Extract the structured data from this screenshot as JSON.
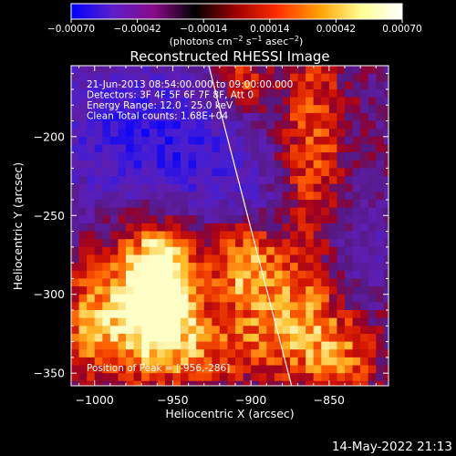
{
  "chart_data": {
    "type": "heatmap",
    "title": "Reconstructed RHESSI Image",
    "xlabel": "Heliocentric X (arcsec)",
    "ylabel": "Heliocentric Y (arcsec)",
    "xlim": [
      -1015,
      -812
    ],
    "ylim": [
      -358,
      -155
    ],
    "x_ticks": [
      -1000,
      -950,
      -900,
      -850
    ],
    "y_ticks": [
      -200,
      -250,
      -300,
      -350
    ],
    "x_tick_labels": [
      "−1000",
      "−950",
      "−900",
      "−850"
    ],
    "y_tick_labels": [
      "−200",
      "−250",
      "−300",
      "−350"
    ],
    "grid": false,
    "colorbar": {
      "range": [
        -0.0007,
        0.0007
      ],
      "ticks": [
        -0.0007,
        -0.00042,
        -0.00014,
        0.00014,
        0.00042,
        0.0007
      ],
      "tick_labels": [
        "−0.00070",
        "−0.00042",
        "−0.00014",
        "0.00014",
        "0.00042",
        "0.00070"
      ],
      "unit_text": "(photons cm",
      "unit_exp1": "−2",
      "unit_mid": " s",
      "unit_exp2": "−1",
      "unit_end": " asec",
      "unit_exp3": "−2",
      "unit_close": ")",
      "colors": [
        "#0000ff",
        "#5a1fc8",
        "#8a0a8a",
        "#000000",
        "#a00000",
        "#ff3000",
        "#ffa000",
        "#ffff90",
        "#ffffff"
      ]
    },
    "info_lines": [
      "21-Jun-2013 08:54:00.000 to 09:00:00.000",
      "Detectors: 3F 4F 5F 6F 7F 8F, Att 0",
      "Energy Range: 12.0 - 25.0 keV",
      "Clean     Total counts: 1.68E+04"
    ],
    "peak_label": "Position of Peak = [-956,-286]",
    "peak": [
      -956,
      -286
    ],
    "limb_line": {
      "x1": -927,
      "y1": -155,
      "x2": -874,
      "y2": -358
    },
    "hot_spots": [
      {
        "x": -955,
        "y": -290,
        "sx": 16,
        "sy": 28,
        "a": 1.0
      },
      {
        "x": -975,
        "y": -300,
        "sx": 22,
        "sy": 32,
        "a": 0.7
      },
      {
        "x": -905,
        "y": -280,
        "sx": 14,
        "sy": 22,
        "a": 0.75
      },
      {
        "x": -870,
        "y": -310,
        "sx": 22,
        "sy": 30,
        "a": 0.65
      },
      {
        "x": -860,
        "y": -200,
        "sx": 15,
        "sy": 45,
        "a": 0.6
      },
      {
        "x": -905,
        "y": -165,
        "sx": 12,
        "sy": 14,
        "a": 0.55
      },
      {
        "x": -935,
        "y": -335,
        "sx": 40,
        "sy": 18,
        "a": 0.55
      },
      {
        "x": -840,
        "y": -340,
        "sx": 18,
        "sy": 18,
        "a": 0.5
      },
      {
        "x": -1005,
        "y": -320,
        "sx": 14,
        "sy": 25,
        "a": 0.45
      }
    ],
    "cold_spots": [
      {
        "x": -985,
        "y": -195,
        "sx": 38,
        "sy": 40,
        "a": 1.0
      },
      {
        "x": -935,
        "y": -215,
        "sx": 28,
        "sy": 32,
        "a": 0.8
      },
      {
        "x": -830,
        "y": -275,
        "sx": 18,
        "sy": 25,
        "a": 0.6
      },
      {
        "x": -900,
        "y": -240,
        "sx": 14,
        "sy": 16,
        "a": 0.5
      }
    ]
  },
  "footer": {
    "date": "14-May-2022 21:13"
  }
}
